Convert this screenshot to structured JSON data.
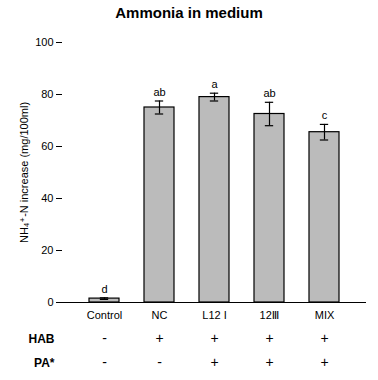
{
  "chart_data": {
    "type": "bar",
    "title": "Ammonia in medium",
    "categories": [
      "Control",
      "NC",
      "L12 I",
      "12Ⅲ",
      "MIX"
    ],
    "values": [
      1.5,
      75.0,
      79.0,
      72.5,
      65.5
    ],
    "errors": [
      0.3,
      2.5,
      1.5,
      4.5,
      3.0
    ],
    "letters": [
      "d",
      "ab",
      "a",
      "ab",
      "c"
    ],
    "color": "#bbbbbb",
    "ylabel": "NH₄⁺-N increase (mg/100ml)",
    "ylim": [
      0,
      100
    ],
    "yticks": [
      0,
      20,
      40,
      60,
      80,
      100
    ],
    "grid": false,
    "table_rows": [
      {
        "name": "HAB",
        "values": [
          "-",
          "+",
          "+",
          "+",
          "+"
        ]
      },
      {
        "name": "PA*",
        "values": [
          "-",
          "-",
          "+",
          "+",
          "+"
        ]
      }
    ]
  }
}
